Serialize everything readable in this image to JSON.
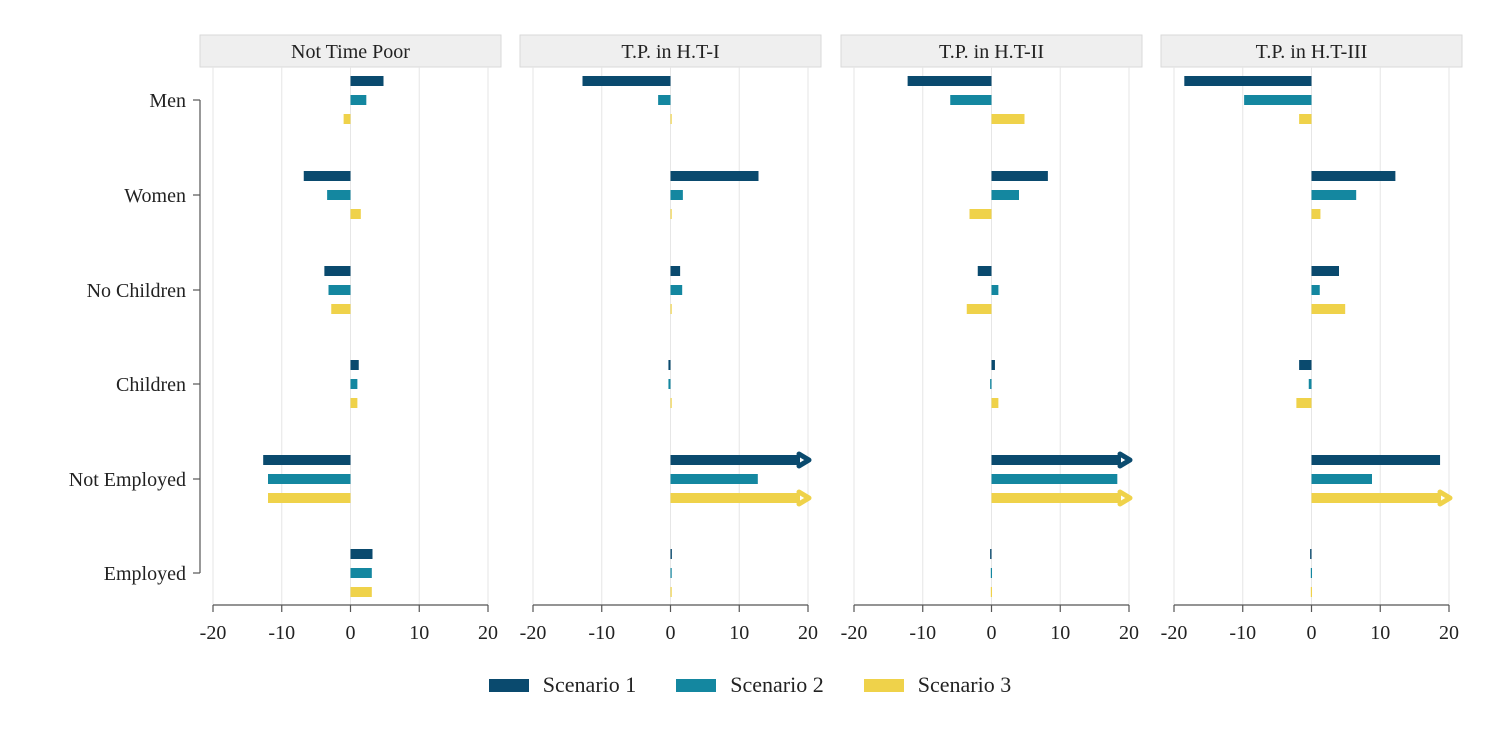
{
  "chart_data": {
    "type": "bar",
    "orientation": "horizontal",
    "categories": [
      "Men",
      "Women",
      "No Children",
      "Children",
      "Not Employed",
      "Employed"
    ],
    "xlim": [
      -20,
      20
    ],
    "xticks": [
      -20,
      -10,
      0,
      10,
      20
    ],
    "xtick_labels": [
      "-20",
      "-10",
      "0",
      "10",
      "20"
    ],
    "grid": true,
    "legend_position": "bottom",
    "series_names": [
      "Scenario 1",
      "Scenario 2",
      "Scenario 3"
    ],
    "colors": [
      "#0a4a6e",
      "#1487a0",
      "#efd24a"
    ],
    "facets": [
      {
        "title": "Not Time Poor",
        "series": [
          {
            "name": "Scenario 1",
            "values": [
              4.8,
              -6.8,
              -3.8,
              1.2,
              -12.7,
              3.2
            ],
            "clipped": [
              false,
              false,
              false,
              false,
              false,
              false
            ]
          },
          {
            "name": "Scenario 2",
            "values": [
              2.3,
              -3.4,
              -3.2,
              1.0,
              -12.0,
              3.1
            ],
            "clipped": [
              false,
              false,
              false,
              false,
              false,
              false
            ]
          },
          {
            "name": "Scenario 3",
            "values": [
              -1.0,
              1.5,
              -2.8,
              1.0,
              -12.0,
              3.1
            ],
            "clipped": [
              false,
              false,
              false,
              false,
              false,
              false
            ]
          }
        ]
      },
      {
        "title": "T.P. in H.T-I",
        "series": [
          {
            "name": "Scenario 1",
            "values": [
              -12.8,
              12.8,
              1.4,
              -0.3,
              20,
              0.2
            ],
            "clipped": [
              false,
              false,
              false,
              false,
              true,
              false
            ]
          },
          {
            "name": "Scenario 2",
            "values": [
              -1.8,
              1.8,
              1.7,
              -0.3,
              12.7,
              0.1
            ],
            "clipped": [
              false,
              false,
              false,
              false,
              false,
              false
            ]
          },
          {
            "name": "Scenario 3",
            "values": [
              0,
              0,
              0.1,
              0,
              20,
              0.1
            ],
            "clipped": [
              false,
              false,
              false,
              false,
              true,
              false
            ]
          }
        ]
      },
      {
        "title": "T.P. in H.T-II",
        "series": [
          {
            "name": "Scenario 1",
            "values": [
              -12.2,
              8.2,
              -2.0,
              0.5,
              20,
              -0.2
            ],
            "clipped": [
              false,
              false,
              false,
              false,
              true,
              false
            ]
          },
          {
            "name": "Scenario 2",
            "values": [
              -6.0,
              4.0,
              1.0,
              -0.2,
              18.3,
              -0.1
            ],
            "clipped": [
              false,
              false,
              false,
              false,
              false,
              false
            ]
          },
          {
            "name": "Scenario 3",
            "values": [
              4.8,
              -3.2,
              -3.6,
              1.0,
              20,
              -0.1
            ],
            "clipped": [
              false,
              false,
              false,
              false,
              true,
              false
            ]
          }
        ]
      },
      {
        "title": "T.P. in H.T-III",
        "series": [
          {
            "name": "Scenario 1",
            "values": [
              -18.5,
              12.2,
              4.0,
              -1.8,
              18.7,
              -0.2
            ],
            "clipped": [
              false,
              false,
              false,
              false,
              false,
              false
            ]
          },
          {
            "name": "Scenario 2",
            "values": [
              -9.8,
              6.5,
              1.2,
              -0.4,
              8.8,
              -0.1
            ],
            "clipped": [
              false,
              false,
              false,
              false,
              false,
              false
            ]
          },
          {
            "name": "Scenario 3",
            "values": [
              -1.8,
              1.3,
              4.9,
              -2.2,
              20,
              -0.1
            ],
            "clipped": [
              false,
              false,
              false,
              false,
              true,
              false
            ]
          }
        ]
      }
    ]
  }
}
